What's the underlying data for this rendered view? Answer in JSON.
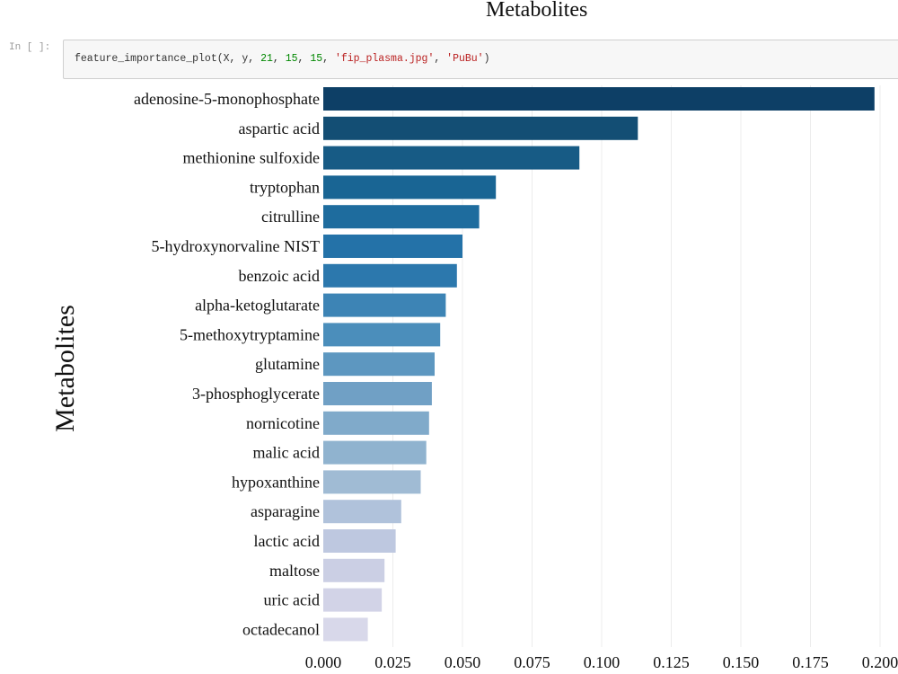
{
  "header": {
    "output_title": "Metabolites"
  },
  "cell": {
    "prompt": "In [ ]:",
    "code": {
      "fn": "feature_importance_plot",
      "open": "(",
      "args_plain": "X, y, ",
      "n1": "21",
      "sep1": ", ",
      "n2": "15",
      "sep2": ", ",
      "n3": "15",
      "sep3": ", ",
      "s1": "'fip_plasma.jpg'",
      "sep4": ", ",
      "s2": "'PuBu'",
      "close": ")"
    }
  },
  "chart_data": {
    "type": "bar",
    "orientation": "horizontal",
    "ylabel": "Metabolites",
    "xlabel": "",
    "xlim": [
      0,
      0.2
    ],
    "xticks": [
      "0.000",
      "0.025",
      "0.050",
      "0.075",
      "0.100",
      "0.125",
      "0.150",
      "0.175",
      "0.200"
    ],
    "grid": "vertical",
    "colormap": "PuBu",
    "categories": [
      "adenosine-5-monophosphate",
      "aspartic acid",
      "methionine sulfoxide",
      "tryptophan",
      "citrulline",
      "5-hydroxynorvaline NIST",
      "benzoic acid",
      "alpha-ketoglutarate",
      "5-methoxytryptamine",
      "glutamine",
      "3-phosphoglycerate",
      "nornicotine",
      "malic acid",
      "hypoxanthine",
      "asparagine",
      "lactic acid",
      "maltose",
      "uric acid",
      "octadecanol"
    ],
    "values": [
      0.198,
      0.113,
      0.092,
      0.062,
      0.056,
      0.05,
      0.048,
      0.044,
      0.042,
      0.04,
      0.039,
      0.038,
      0.037,
      0.035,
      0.028,
      0.026,
      0.022,
      0.021,
      0.016
    ],
    "colors": [
      "#0d3f66",
      "#134e74",
      "#175b85",
      "#196594",
      "#1e6c9e",
      "#2472a8",
      "#2c78ad",
      "#3d84b5",
      "#4b8ebb",
      "#5d97c0",
      "#70a0c5",
      "#80aaca",
      "#90b3cf",
      "#a0bbd4",
      "#b0c2db",
      "#bec8e0",
      "#cbcfe4",
      "#d2d3e7",
      "#d8d8ea"
    ]
  }
}
